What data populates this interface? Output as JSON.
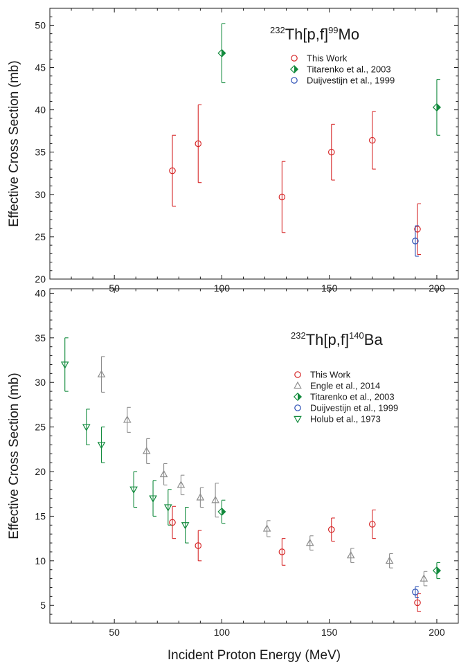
{
  "chart_data": [
    {
      "type": "scatter",
      "title": "",
      "reaction": {
        "pre": "232",
        "mid": "Th[p,f]",
        "sup": "99",
        "post": "Mo"
      },
      "xlabel": "",
      "ylabel": "Effective Cross Section (mb)",
      "xlim": [
        20,
        210
      ],
      "ylim": [
        20,
        52
      ],
      "xticks": [
        50,
        100,
        150,
        200
      ],
      "yticks": [
        20,
        25,
        30,
        35,
        40,
        45,
        50
      ],
      "legend_position": "top-right",
      "series": [
        {
          "name": "This Work",
          "marker": "circle",
          "color": "#d62728",
          "points": [
            {
              "x": 77,
              "y": 32.8,
              "err": 4.2
            },
            {
              "x": 89,
              "y": 36.0,
              "err": 4.6
            },
            {
              "x": 128,
              "y": 29.7,
              "err": 4.2
            },
            {
              "x": 151,
              "y": 35.0,
              "err": 3.3
            },
            {
              "x": 170,
              "y": 36.4,
              "err": 3.4
            },
            {
              "x": 191,
              "y": 25.9,
              "err": 3.0
            }
          ]
        },
        {
          "name": "Titarenko et al., 2003",
          "marker": "half-diamond",
          "color": "#118a3c",
          "points": [
            {
              "x": 100,
              "y": 46.7,
              "err": 3.5
            },
            {
              "x": 200,
              "y": 40.3,
              "err": 3.3
            }
          ]
        },
        {
          "name": "Duijvestijn et al., 1999",
          "marker": "circle",
          "color": "#2b4fb5",
          "points": [
            {
              "x": 190,
              "y": 24.5,
              "err": 1.8
            }
          ]
        }
      ]
    },
    {
      "type": "scatter",
      "title": "",
      "reaction": {
        "pre": "232",
        "mid": "Th[p,f]",
        "sup": "140",
        "post": "Ba"
      },
      "xlabel": "Incident Proton Energy (MeV)",
      "ylabel": "Effective Cross Section (mb)",
      "xlim": [
        20,
        210
      ],
      "ylim": [
        3,
        40.5
      ],
      "xticks": [
        50,
        100,
        150,
        200
      ],
      "yticks": [
        5,
        10,
        15,
        20,
        25,
        30,
        35,
        40
      ],
      "legend_position": "top-right",
      "series": [
        {
          "name": "This Work",
          "marker": "circle",
          "color": "#d62728",
          "points": [
            {
              "x": 77,
              "y": 14.3,
              "err": 1.8
            },
            {
              "x": 89,
              "y": 11.7,
              "err": 1.7
            },
            {
              "x": 128,
              "y": 11.0,
              "err": 1.5
            },
            {
              "x": 151,
              "y": 13.5,
              "err": 1.3
            },
            {
              "x": 170,
              "y": 14.1,
              "err": 1.6
            },
            {
              "x": 191,
              "y": 5.3,
              "err": 1.0
            }
          ]
        },
        {
          "name": "Engle et al., 2014",
          "marker": "triangle-up",
          "color": "#8c8c8c",
          "points": [
            {
              "x": 44,
              "y": 30.9,
              "err": 2.0
            },
            {
              "x": 56,
              "y": 25.8,
              "err": 1.4
            },
            {
              "x": 65,
              "y": 22.3,
              "err": 1.4
            },
            {
              "x": 73,
              "y": 19.7,
              "err": 1.2
            },
            {
              "x": 81,
              "y": 18.5,
              "err": 1.1
            },
            {
              "x": 90,
              "y": 17.1,
              "err": 1.1
            },
            {
              "x": 97,
              "y": 16.8,
              "err": 1.9
            },
            {
              "x": 121,
              "y": 13.6,
              "err": 0.9
            },
            {
              "x": 141,
              "y": 12.0,
              "err": 0.8
            },
            {
              "x": 160,
              "y": 10.6,
              "err": 0.8
            },
            {
              "x": 178,
              "y": 10.0,
              "err": 0.8
            },
            {
              "x": 194,
              "y": 8.0,
              "err": 0.8
            }
          ]
        },
        {
          "name": "Titarenko et al., 2003",
          "marker": "half-diamond",
          "color": "#118a3c",
          "points": [
            {
              "x": 100,
              "y": 15.5,
              "err": 1.3
            },
            {
              "x": 200,
              "y": 8.9,
              "err": 0.9
            }
          ]
        },
        {
          "name": "Duijvestijn et al., 1999",
          "marker": "circle",
          "color": "#2b4fb5",
          "points": [
            {
              "x": 190,
              "y": 6.5,
              "err": 0.6
            }
          ]
        },
        {
          "name": "Holub et al., 1973",
          "marker": "triangle-down",
          "color": "#118a3c",
          "points": [
            {
              "x": 27,
              "y": 32.0,
              "err": 3.0
            },
            {
              "x": 37,
              "y": 25.0,
              "err": 2.0
            },
            {
              "x": 44,
              "y": 23.0,
              "err": 2.0
            },
            {
              "x": 59,
              "y": 18.0,
              "err": 2.0
            },
            {
              "x": 68,
              "y": 17.0,
              "err": 2.0
            },
            {
              "x": 75,
              "y": 16.0,
              "err": 2.0
            },
            {
              "x": 83,
              "y": 14.0,
              "err": 2.0
            }
          ]
        }
      ]
    }
  ]
}
